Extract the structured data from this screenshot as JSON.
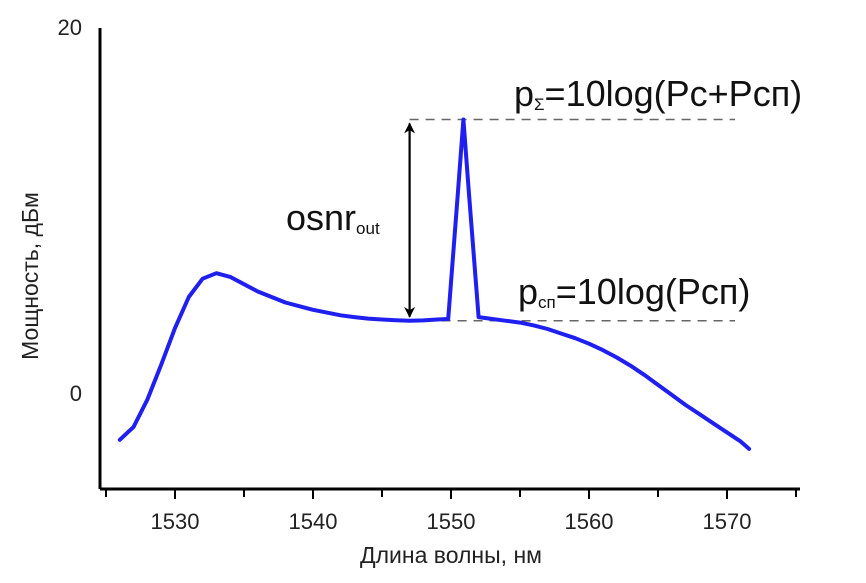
{
  "chart_data": {
    "type": "line",
    "xlabel": "Длина волны, нм",
    "ylabel": "Мощность, дБм",
    "x_ticks": [
      "1530",
      "1540",
      "1550",
      "1560",
      "1570"
    ],
    "y_ticks": [
      "20",
      "0"
    ],
    "xlim": [
      1525,
      1575
    ],
    "ylim": [
      -4,
      20
    ],
    "grid": false,
    "series": [
      {
        "color": "#1f1ff0",
        "x": [
          1526,
          1527,
          1528,
          1529,
          1530,
          1531,
          1532,
          1533,
          1534,
          1535,
          1536,
          1537,
          1538,
          1539,
          1540,
          1541,
          1542,
          1543,
          1544,
          1545,
          1546,
          1547,
          1548,
          1549,
          1549.8,
          1550.5,
          1550.9,
          1551.3,
          1552,
          1553,
          1554,
          1555,
          1556,
          1557,
          1558,
          1559,
          1560,
          1561,
          1562,
          1563,
          1564,
          1565,
          1566,
          1567,
          1568,
          1569,
          1570,
          1571,
          1571.6
        ],
        "y": [
          -2.5,
          -1.8,
          -0.3,
          1.6,
          3.6,
          5.3,
          6.3,
          6.6,
          6.4,
          6.0,
          5.6,
          5.3,
          5.0,
          4.8,
          4.6,
          4.45,
          4.3,
          4.2,
          4.12,
          4.07,
          4.03,
          4.0,
          4.02,
          4.07,
          4.1,
          11.0,
          15.0,
          11.0,
          4.2,
          4.1,
          4.0,
          3.9,
          3.75,
          3.55,
          3.3,
          3.05,
          2.75,
          2.4,
          2.0,
          1.55,
          1.05,
          0.5,
          -0.05,
          -0.6,
          -1.1,
          -1.6,
          -2.1,
          -2.6,
          -3.0
        ]
      }
    ]
  },
  "annotations": {
    "osnr_main": "osnr",
    "osnr_sub": "out",
    "p_sigma_main": "p",
    "p_sigma_sub": "Σ",
    "p_sigma_formula": "=10log(Pc+Pcп)",
    "p_sp_main": "p",
    "p_sp_sub": "cп",
    "p_sp_formula": "=10log(Pcп)",
    "peak_level": 15.0,
    "floor_level": 4.0
  }
}
